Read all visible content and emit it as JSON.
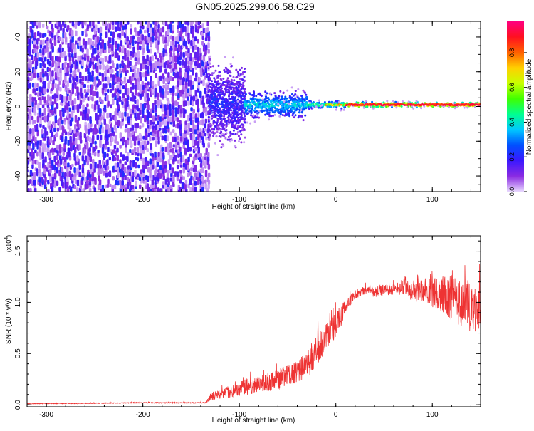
{
  "figure_title": "GN05.2025.299.06.58.C29",
  "chart_data": [
    {
      "type": "heatmap",
      "title": "GN05.2025.299.06.58.C29",
      "xlabel": "Height of straight line (km)",
      "ylabel": "Frequency (Hz)",
      "xlim": [
        -320,
        150
      ],
      "ylim": [
        -49,
        49
      ],
      "x_ticks": [
        -300,
        -200,
        -100,
        0,
        100
      ],
      "x_tick_labels": [
        "-300",
        "-200",
        "-100",
        "0",
        "100"
      ],
      "y_ticks": [
        -40,
        -20,
        0,
        20,
        40
      ],
      "y_tick_labels": [
        "-40",
        "-20",
        "0",
        "20",
        "40"
      ],
      "colorbar": {
        "label": "Normalized spectral amplitude",
        "range": [
          0,
          0.98
        ],
        "ticks": [
          0.0,
          0.2,
          0.4,
          0.6,
          0.8
        ],
        "tick_labels": [
          "0.0",
          "0.2",
          "0.4",
          "0.6",
          "0.8"
        ],
        "colormap": [
          "#e8d8ff",
          "#8a2be2",
          "#3a18ff",
          "#0050ff",
          "#00c8ff",
          "#00ff90",
          "#40ff00",
          "#c8ff00",
          "#ffd000",
          "#ff6000",
          "#ff1020",
          "#ff0080"
        ]
      },
      "regions": [
        {
          "x_range": [
            -320,
            -132
          ],
          "freq_halfwidth": 49,
          "amplitude": 0.12,
          "note": "broadband noise"
        },
        {
          "x_range": [
            -132,
            -95
          ],
          "freq_center": 2,
          "freq_halfwidth": 30,
          "amplitude": 0.2
        },
        {
          "x_range": [
            -95,
            -30
          ],
          "freq_center": 1,
          "freq_halfwidth": 10,
          "amplitude": 0.38
        },
        {
          "x_range": [
            -30,
            10
          ],
          "freq_center": 1,
          "freq_halfwidth": 3,
          "amplitude": 0.5
        },
        {
          "x_range": [
            10,
            150
          ],
          "freq_center": 1,
          "freq_halfwidth": 2,
          "amplitude": 0.9
        }
      ]
    },
    {
      "type": "line",
      "xlabel": "Height of straight line (km)",
      "ylabel": "SNR (10 * v/v)",
      "y_multiplier": "(x10",
      "y_multiplier_exp": "4",
      "y_multiplier_close": ")",
      "xlim": [
        -320,
        150
      ],
      "ylim": [
        -0.02,
        1.65
      ],
      "x_ticks": [
        -300,
        -200,
        -100,
        0,
        100
      ],
      "x_tick_labels": [
        "-300",
        "-200",
        "-100",
        "0",
        "100"
      ],
      "y_ticks": [
        0.0,
        0.5,
        1.0,
        1.5
      ],
      "y_tick_labels": [
        "0.0",
        "0.5",
        "1.0",
        "1.5"
      ],
      "color": "#ee3333",
      "series": [
        {
          "x": [
            -320,
            -250,
            -200,
            -150,
            -135,
            -130,
            -120,
            -110,
            -100,
            -90,
            -80,
            -70,
            -60,
            -50,
            -40,
            -30,
            -25,
            -20,
            -15,
            -10,
            -5,
            0,
            5,
            10,
            20,
            30,
            40,
            50,
            60,
            70,
            80,
            90,
            100,
            110,
            120,
            130,
            140,
            150
          ],
          "values": [
            0.01,
            0.015,
            0.02,
            0.02,
            0.02,
            0.08,
            0.1,
            0.13,
            0.15,
            0.18,
            0.2,
            0.22,
            0.25,
            0.28,
            0.32,
            0.38,
            0.45,
            0.52,
            0.6,
            0.67,
            0.72,
            0.78,
            0.86,
            0.97,
            1.08,
            1.12,
            1.1,
            1.12,
            1.13,
            1.15,
            1.1,
            1.12,
            1.1,
            1.08,
            1.05,
            1.0,
            0.95,
            0.92
          ],
          "noise": [
            0.004,
            0.005,
            0.006,
            0.006,
            0.006,
            0.05,
            0.06,
            0.08,
            0.1,
            0.1,
            0.1,
            0.12,
            0.12,
            0.13,
            0.15,
            0.16,
            0.18,
            0.18,
            0.18,
            0.17,
            0.16,
            0.15,
            0.13,
            0.1,
            0.06,
            0.05,
            0.06,
            0.07,
            0.08,
            0.1,
            0.12,
            0.14,
            0.18,
            0.22,
            0.28,
            0.3,
            0.32,
            0.3
          ]
        }
      ]
    }
  ]
}
